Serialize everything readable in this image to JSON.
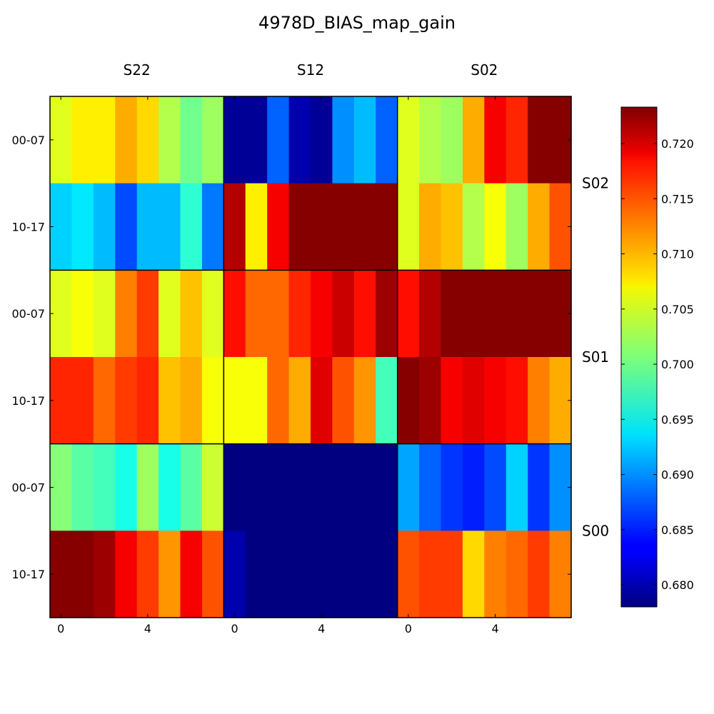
{
  "chart_data": {
    "type": "heatmap",
    "title": "4978D_BIAS_map_gain",
    "column_labels": [
      "S22",
      "S12",
      "S02"
    ],
    "section_labels": [
      "S02",
      "S01",
      "S00"
    ],
    "row_labels": [
      "00-07",
      "10-17",
      "00-07",
      "10-17",
      "00-07",
      "10-17"
    ],
    "x_ticks": [
      {
        "value": 0,
        "label": "0"
      },
      {
        "value": 4,
        "label": "4"
      }
    ],
    "colorbar": {
      "colormap": "jet",
      "vmin": 0.678,
      "vmax": 0.7233,
      "ticks": [
        "0.680",
        "0.685",
        "0.690",
        "0.695",
        "0.700",
        "0.705",
        "0.710",
        "0.715",
        "0.720"
      ],
      "tick_values": [
        0.68,
        0.685,
        0.69,
        0.695,
        0.7,
        0.705,
        0.71,
        0.715,
        0.72
      ]
    },
    "values": [
      [
        0.705,
        0.707,
        0.707,
        0.71,
        0.708,
        0.703,
        0.7,
        0.702,
        0.679,
        0.679,
        0.688,
        0.68,
        0.679,
        0.69,
        0.692,
        0.688,
        0.705,
        0.703,
        0.702,
        0.71,
        0.718,
        0.716,
        0.723,
        0.723
      ],
      [
        0.693,
        0.694,
        0.692,
        0.687,
        0.692,
        0.692,
        0.697,
        0.689,
        0.721,
        0.707,
        0.718,
        0.723,
        0.723,
        0.723,
        0.723,
        0.723,
        0.705,
        0.71,
        0.709,
        0.703,
        0.706,
        0.702,
        0.71,
        0.714
      ],
      [
        0.705,
        0.706,
        0.705,
        0.712,
        0.715,
        0.705,
        0.709,
        0.705,
        0.717,
        0.713,
        0.713,
        0.716,
        0.718,
        0.72,
        0.717,
        0.722,
        0.717,
        0.721,
        0.723,
        0.723,
        0.723,
        0.723,
        0.723,
        0.723
      ],
      [
        0.716,
        0.716,
        0.713,
        0.715,
        0.716,
        0.709,
        0.71,
        0.706,
        0.706,
        0.706,
        0.713,
        0.71,
        0.719,
        0.714,
        0.711,
        0.698,
        0.723,
        0.722,
        0.718,
        0.719,
        0.718,
        0.717,
        0.712,
        0.71
      ],
      [
        0.701,
        0.699,
        0.698,
        0.696,
        0.702,
        0.696,
        0.699,
        0.704,
        0.678,
        0.678,
        0.678,
        0.678,
        0.678,
        0.678,
        0.678,
        0.678,
        0.691,
        0.688,
        0.686,
        0.685,
        0.687,
        0.693,
        0.686,
        0.69
      ],
      [
        0.723,
        0.723,
        0.722,
        0.718,
        0.715,
        0.711,
        0.718,
        0.714,
        0.68,
        0.678,
        0.678,
        0.678,
        0.678,
        0.678,
        0.678,
        0.678,
        0.714,
        0.715,
        0.715,
        0.708,
        0.712,
        0.713,
        0.715,
        0.712
      ]
    ]
  }
}
